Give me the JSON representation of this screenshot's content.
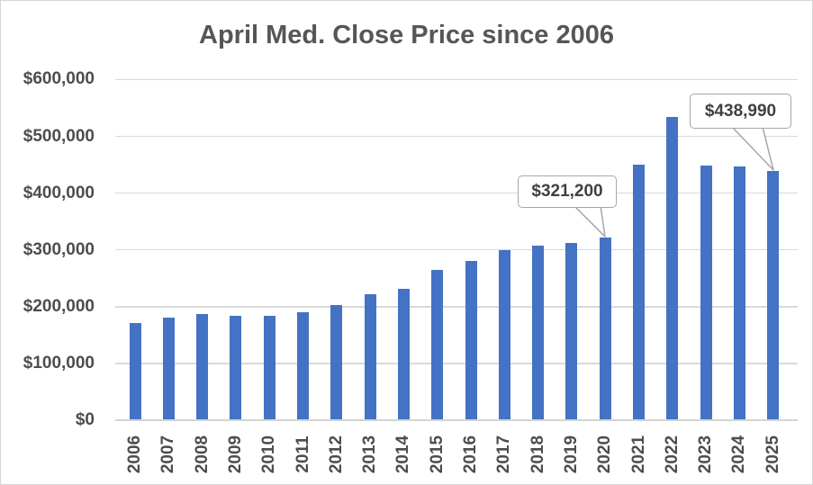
{
  "chart_data": {
    "type": "bar",
    "title": "April Med. Close Price since 2006",
    "xlabel": "",
    "ylabel": "",
    "categories": [
      "2006",
      "2007",
      "2008",
      "2009",
      "2010",
      "2011",
      "2012",
      "2013",
      "2014",
      "2015",
      "2016",
      "2017",
      "2018",
      "2019",
      "2020",
      "2021",
      "2022",
      "2023",
      "2024",
      "2025"
    ],
    "values": [
      171000,
      180000,
      186500,
      184000,
      184000,
      190000,
      203500,
      222500,
      232000,
      265000,
      280000,
      300000,
      308000,
      312000,
      321200,
      449500,
      534000,
      448500,
      447000,
      438990
    ],
    "y_ticks": [
      "$0",
      "$100,000",
      "$200,000",
      "$300,000",
      "$400,000",
      "$500,000",
      "$600,000"
    ],
    "ylim": [
      0,
      600000
    ],
    "y_tick_step": 100000,
    "grid": true,
    "legend": "none",
    "bar_color": "#4472c4",
    "gridline_color": "#d9d9d9",
    "text_color": "#4d4d4d",
    "annotations": [
      {
        "year": "2020",
        "label": "$321,200"
      },
      {
        "year": "2025",
        "label": "$438,990"
      }
    ]
  }
}
